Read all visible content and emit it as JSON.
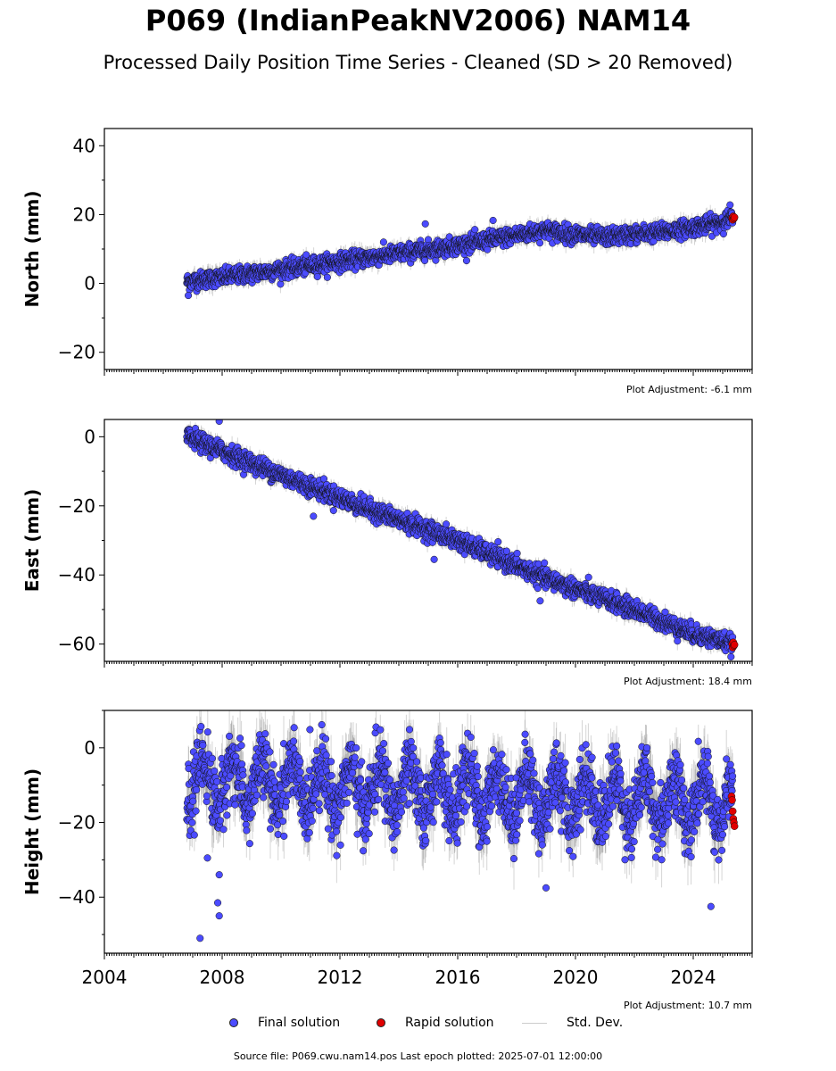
{
  "title": "P069 (IndianPeakNV2006) NAM14",
  "subtitle": "Processed Daily Position Time Series - Cleaned (SD > 20 Removed)",
  "colors": {
    "final": "#4b4bff",
    "rapid": "#e00000",
    "stddev": "#cccccc",
    "frame": "#000000"
  },
  "chart_data": [
    {
      "type": "scatter",
      "ylabel": "North (mm)",
      "xlim": [
        2004,
        2026
      ],
      "ylim": [
        -25,
        45
      ],
      "yticks": [
        40,
        20,
        0,
        -20
      ],
      "yticklabels": [
        "40",
        "20",
        "0",
        "−20"
      ],
      "xticklabels_visible": false,
      "adjustment": "Plot Adjustment: -6.1 mm",
      "trend": {
        "x": [
          2006.8,
          2010,
          2013,
          2016,
          2019,
          2019.7,
          2021,
          2023,
          2024.5,
          2025.4
        ],
        "y": [
          0.5,
          4,
          7.5,
          11,
          15.5,
          14.5,
          13.5,
          15,
          17,
          19
        ]
      },
      "scatter_sd": 1.2,
      "error_mm": 2.0,
      "outliers": [
        {
          "x": 2006.85,
          "y": -3.5
        },
        {
          "x": 2014.9,
          "y": 17.3
        },
        {
          "x": 2025.25,
          "y": 22.8
        },
        {
          "x": 2017.2,
          "y": 18.3
        }
      ],
      "rapid": {
        "x": [
          2025.32,
          2025.34,
          2025.36,
          2025.38,
          2025.4
        ],
        "y": [
          19,
          18.5,
          19.5,
          18.8,
          19.2
        ]
      }
    },
    {
      "type": "scatter",
      "ylabel": "East (mm)",
      "xlim": [
        2004,
        2026
      ],
      "ylim": [
        -65,
        5
      ],
      "yticks": [
        0,
        -20,
        -40,
        -60
      ],
      "yticklabels": [
        "0",
        "−20",
        "−40",
        "−60"
      ],
      "xticklabels_visible": false,
      "adjustment": "Plot Adjustment: 18.4 mm",
      "trend": {
        "x": [
          2006.8,
          2010,
          2013,
          2016,
          2019,
          2022,
          2024,
          2025.4
        ],
        "y": [
          0,
          -11,
          -21,
          -30,
          -41,
          -50,
          -57,
          -60
        ]
      },
      "scatter_sd": 1.3,
      "error_mm": 2.0,
      "outliers": [
        {
          "x": 2007.9,
          "y": 4.5
        },
        {
          "x": 2015.2,
          "y": -35.5
        },
        {
          "x": 2011.1,
          "y": -23
        },
        {
          "x": 2018.8,
          "y": -47.5
        }
      ],
      "rapid": {
        "x": [
          2025.32,
          2025.34,
          2025.36,
          2025.38,
          2025.4
        ],
        "y": [
          -60,
          -61,
          -59.5,
          -60.5,
          -60.2
        ]
      }
    },
    {
      "type": "scatter",
      "ylabel": "Height (mm)",
      "xlim": [
        2004,
        2026
      ],
      "ylim": [
        -55,
        10
      ],
      "yticks": [
        0,
        -20,
        -40
      ],
      "yticklabels": [
        "0",
        "−20",
        "−40"
      ],
      "xticks": [
        2004,
        2008,
        2012,
        2016,
        2020,
        2024
      ],
      "xticklabels": [
        "2004",
        "2008",
        "2012",
        "2016",
        "2020",
        "2024"
      ],
      "xticklabels_visible": true,
      "adjustment": "Plot Adjustment: 10.7 mm",
      "trend": {
        "x": [
          2006.8,
          2025.4
        ],
        "y": [
          -9,
          -15
        ]
      },
      "seasonal_amplitude": 6,
      "scatter_sd": 4.5,
      "error_mm": 6.0,
      "outliers": [
        {
          "x": 2007.25,
          "y": -51
        },
        {
          "x": 2007.9,
          "y": -45
        },
        {
          "x": 2007.85,
          "y": -41.5
        },
        {
          "x": 2007.9,
          "y": -34
        },
        {
          "x": 2007.5,
          "y": -29.5
        },
        {
          "x": 2019.0,
          "y": -37.5
        },
        {
          "x": 2024.6,
          "y": -42.5
        }
      ],
      "rapid": {
        "x": [
          2025.3,
          2025.32,
          2025.34,
          2025.36,
          2025.38,
          2025.4
        ],
        "y": [
          -13,
          -14,
          -17,
          -19,
          -20,
          -21
        ]
      }
    }
  ],
  "legend": {
    "final_label": "Final solution",
    "rapid_label": "Rapid solution",
    "stddev_label": "Std. Dev."
  },
  "footer": "Source file: P069.cwu.nam14.pos  Last epoch plotted: 2025-07-01 12:00:00"
}
